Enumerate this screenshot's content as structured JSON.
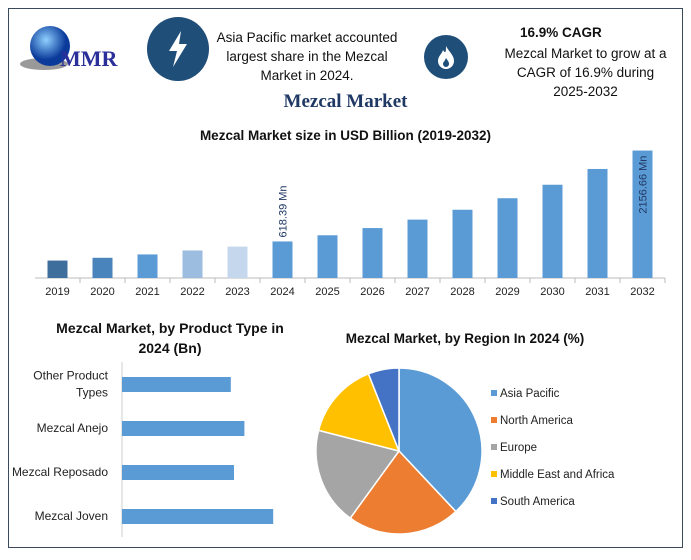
{
  "logo": {
    "text": "MMR"
  },
  "header": {
    "icon_left": "lightning-bolt-icon",
    "info_left": "Asia Pacific market accounted largest share in the Mezcal Market in 2024.",
    "icon_right": "flame-icon",
    "cagr_title": "16.9% CAGR",
    "info_right": "Mezcal Market to grow at a CAGR of 16.9% during 2025-2032"
  },
  "title": "Mezcal Market",
  "colors": {
    "primary": "#1f4e79",
    "bar": "#5b9bd5",
    "title": "#1f3864"
  },
  "chart_data": [
    {
      "type": "bar",
      "title": "Mezcal Market size in USD Billion (2019-2032)",
      "categories": [
        "2019",
        "2020",
        "2021",
        "2022",
        "2023",
        "2024",
        "2025",
        "2026",
        "2027",
        "2028",
        "2029",
        "2030",
        "2031",
        "2032"
      ],
      "values": [
        295,
        342,
        399,
        466,
        532,
        618.39,
        723,
        845,
        988,
        1155,
        1350,
        1578,
        1845,
        2156.66
      ],
      "colors": [
        "#3e6e9c",
        "#4a84bd",
        "#5b9bd5",
        "#9dbde0",
        "#c5d7ec",
        "#5b9bd5",
        "#5b9bd5",
        "#5b9bd5",
        "#5b9bd5",
        "#5b9bd5",
        "#5b9bd5",
        "#5b9bd5",
        "#5b9bd5",
        "#5b9bd5"
      ],
      "data_labels": {
        "2024": "618.39 Mn",
        "2032": "2156.66 Mn"
      },
      "ylim": [
        0,
        2200
      ],
      "grid": false
    },
    {
      "type": "bar",
      "orientation": "horizontal",
      "title": "Mezcal Market, by Product Type in 2024 (Bn)",
      "categories": [
        "Other Product Types",
        "Mezcal Anejo",
        "Mezcal Reposado",
        "Mezcal Joven"
      ],
      "values": [
        0.136,
        0.153,
        0.14,
        0.189
      ],
      "color": "#5b9bd5",
      "xlim": [
        0,
        0.2
      ]
    },
    {
      "type": "pie",
      "title": "Mezcal Market, by Region In 2024 (%)",
      "labels": [
        "Asia Pacific",
        "North America",
        "Europe",
        "Middle East and Africa",
        "South America"
      ],
      "values": [
        38,
        22,
        19,
        15,
        6
      ],
      "colors": [
        "#5b9bd5",
        "#ed7d31",
        "#a5a5a5",
        "#ffc000",
        "#4472c4"
      ],
      "legend": "right"
    }
  ]
}
